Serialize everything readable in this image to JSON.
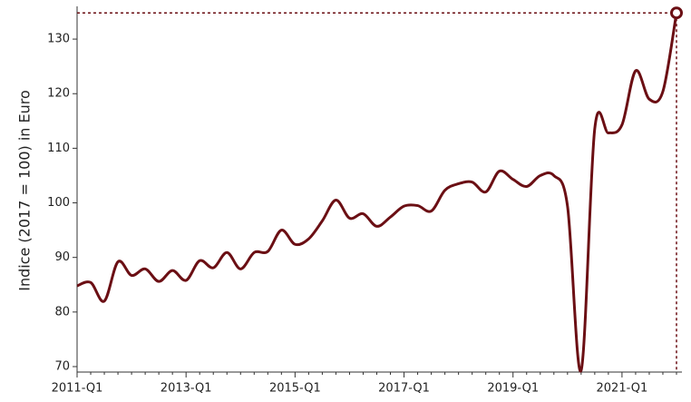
{
  "chart_data": {
    "type": "line",
    "y_label": "Indice (2017 = 100) in Euro",
    "categories": [
      "2011-Q1",
      null,
      null,
      null,
      null,
      null,
      null,
      null,
      "2013-Q1",
      null,
      null,
      null,
      null,
      null,
      null,
      null,
      "2015-Q1",
      null,
      null,
      null,
      null,
      null,
      null,
      null,
      "2017-Q1",
      null,
      null,
      null,
      null,
      null,
      null,
      null,
      "2019-Q1",
      null,
      null,
      null,
      null,
      null,
      null,
      null,
      "2021-Q1",
      null,
      null,
      null,
      null
    ],
    "values": [
      84.8,
      85.4,
      82.0,
      89.2,
      86.7,
      87.9,
      85.6,
      87.6,
      85.8,
      89.4,
      88.1,
      90.9,
      87.9,
      90.9,
      91.1,
      95.0,
      92.4,
      93.4,
      96.7,
      100.5,
      97.2,
      98.0,
      95.7,
      97.4,
      99.4,
      99.5,
      98.5,
      102.3,
      103.5,
      103.8,
      102.0,
      105.8,
      104.3,
      103.0,
      105.0,
      105.0,
      99.4,
      69.3,
      113.6,
      112.8,
      114.3,
      124.2,
      119.0,
      120.4,
      134.8
    ],
    "color": "#6b0f14",
    "ylim": [
      69,
      136
    ],
    "yticks": [
      70,
      80,
      90,
      100,
      110,
      120,
      130
    ]
  }
}
